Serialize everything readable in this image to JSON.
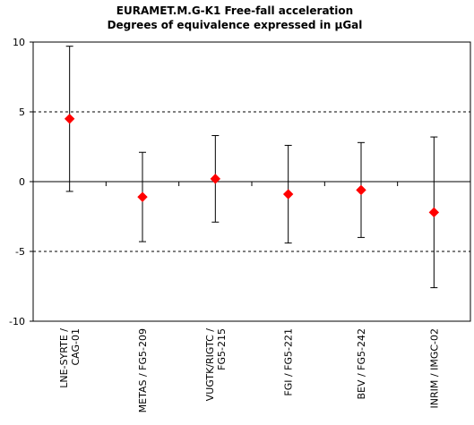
{
  "chart_data": {
    "type": "scatter",
    "title": "EURAMET.M.G-K1     Free-fall acceleration",
    "subtitle": "Degrees of equivalence expressed in µGal",
    "xlabel": "",
    "ylabel": "",
    "ylim": [
      -10,
      10
    ],
    "yticks": [
      10,
      5,
      0,
      -5,
      -10
    ],
    "ytick_labels": [
      "10",
      "5",
      "0",
      "-5",
      "-10"
    ],
    "grid": "dashed horizontal at ±5",
    "legend": "none",
    "categories": [
      "LNE-SYRTE / CAG-01",
      "METAS / FG5-209",
      "VUGTK/RIGTC / FG5-215",
      "FGI / FG5-221",
      "BEV / FG5-242",
      "INRIM / IMGC-02"
    ],
    "category_label_lines": [
      [
        "LNE-SYRTE /",
        "CAG-01"
      ],
      [
        "METAS / FG5-209"
      ],
      [
        "VUGTK/RIGTC /",
        "FG5-215"
      ],
      [
        "FGI / FG5-221"
      ],
      [
        "BEV / FG5-242"
      ],
      [
        "INRIM / IMGC-02"
      ]
    ],
    "series": [
      {
        "values": [
          4.5,
          -1.1,
          0.2,
          -0.9,
          -0.6,
          -2.2
        ],
        "error_upper": [
          9.7,
          2.1,
          3.3,
          2.6,
          2.8,
          3.2
        ],
        "error_lower": [
          -0.7,
          -4.3,
          -2.9,
          -4.4,
          -4.0,
          -7.6
        ]
      }
    ],
    "colors": {
      "marker": "#ff0000",
      "error_bar": "#000000",
      "axis": "#000000",
      "grid": "#000000"
    }
  }
}
